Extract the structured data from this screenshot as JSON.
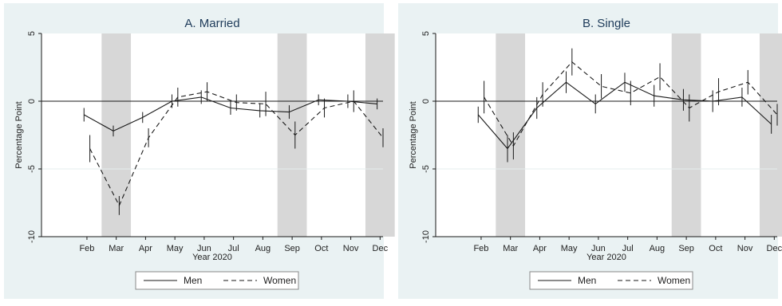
{
  "chart_data": [
    {
      "type": "line",
      "title": "A. Married",
      "xlabel": "Year 2020",
      "ylabel": "Percentage Point",
      "ylim": [
        -10,
        5
      ],
      "yticks": [
        "5",
        "0",
        "-5",
        "-10"
      ],
      "categories": [
        "Feb",
        "Mar",
        "Apr",
        "May",
        "Jun",
        "Jul",
        "Aug",
        "Sep",
        "Oct",
        "Nov",
        "Dec"
      ],
      "shaded_months": [
        "Mar",
        "Sep",
        "Dec"
      ],
      "series": [
        {
          "name": "Men",
          "style": "solid",
          "x": [
            1.9,
            2.9,
            3.9,
            4.9,
            5.9,
            6.9,
            7.9,
            8.9,
            9.9,
            10.9,
            11.9
          ],
          "y": [
            -1.0,
            -2.2,
            -1.2,
            0.0,
            0.3,
            -0.5,
            -0.7,
            -0.8,
            0.1,
            0.0,
            -0.2
          ],
          "err": [
            0.5,
            0.4,
            0.4,
            0.5,
            0.5,
            0.5,
            0.5,
            0.5,
            0.4,
            0.5,
            0.4
          ]
        },
        {
          "name": "Women",
          "style": "dashed",
          "x": [
            2.1,
            3.1,
            4.1,
            5.1,
            6.1,
            7.1,
            8.1,
            9.1,
            10.1,
            11.1,
            12.1
          ],
          "y": [
            -3.5,
            -7.7,
            -2.7,
            0.3,
            0.7,
            -0.1,
            -0.2,
            -2.5,
            -0.5,
            0.0,
            -2.7
          ],
          "err": [
            1.0,
            0.7,
            0.7,
            0.7,
            0.7,
            0.6,
            0.9,
            1.0,
            0.7,
            0.8,
            0.7
          ]
        }
      ],
      "legend": [
        "Men",
        "Women"
      ],
      "legend_position": "bottom"
    },
    {
      "type": "line",
      "title": "B. Single",
      "xlabel": "Year 2020",
      "ylabel": "Percentage Point",
      "ylim": [
        -10,
        5
      ],
      "yticks": [
        "5",
        "0",
        "-5",
        "-10"
      ],
      "categories": [
        "Feb",
        "Mar",
        "Apr",
        "May",
        "Jun",
        "Jul",
        "Aug",
        "Sep",
        "Oct",
        "Nov",
        "Dec"
      ],
      "shaded_months": [
        "Mar",
        "Sep",
        "Dec"
      ],
      "series": [
        {
          "name": "Men",
          "style": "solid",
          "x": [
            1.9,
            2.9,
            3.9,
            4.9,
            5.9,
            6.9,
            7.9,
            8.9,
            9.9,
            10.9,
            11.9
          ],
          "y": [
            -1.0,
            -3.5,
            -0.5,
            1.4,
            -0.2,
            1.4,
            0.4,
            0.1,
            0.0,
            0.3,
            -1.7
          ],
          "err": [
            0.6,
            1.0,
            0.8,
            0.8,
            0.7,
            0.7,
            0.8,
            0.8,
            0.8,
            0.7,
            0.7
          ]
        },
        {
          "name": "Women",
          "style": "dashed",
          "x": [
            2.1,
            3.1,
            4.1,
            5.1,
            6.1,
            7.1,
            8.1,
            9.1,
            10.1,
            11.1,
            12.1
          ],
          "y": [
            0.3,
            -3.3,
            0.5,
            2.9,
            1.1,
            0.6,
            1.8,
            -0.5,
            0.7,
            1.4,
            -1.0
          ],
          "err": [
            1.2,
            1.0,
            0.9,
            1.0,
            0.9,
            0.9,
            1.0,
            1.0,
            1.0,
            0.9,
            0.8
          ]
        }
      ],
      "legend": [
        "Men",
        "Women"
      ],
      "legend_position": "bottom"
    }
  ],
  "colors": {
    "panel_bg": "#eaf2f3",
    "plot_bg": "#ffffff",
    "title": "#1e3b5a",
    "shade": "#d7d7d7",
    "line": "#1a1a1a",
    "grid": "#e6ecee"
  }
}
